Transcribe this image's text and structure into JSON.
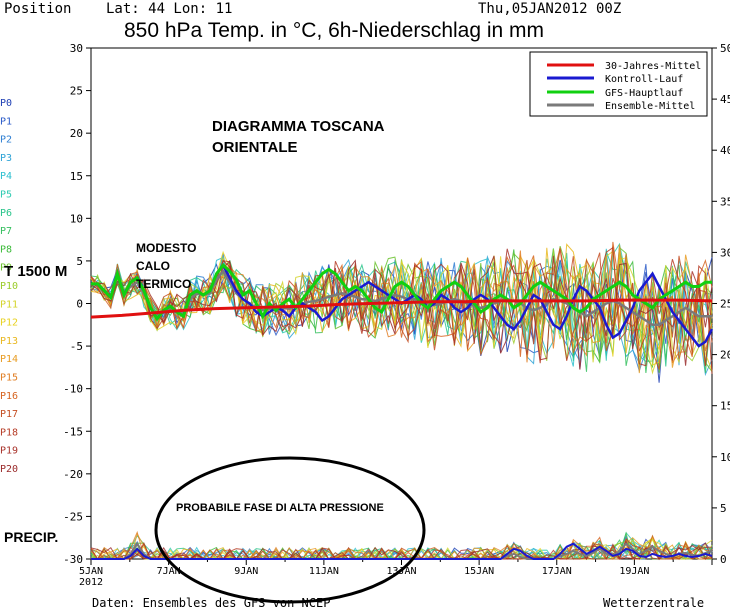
{
  "header": {
    "position_label": "Position",
    "lat_lon": "Lat: 44  Lon: 11",
    "run_date": "Thu,05JAN2012  00Z",
    "title": "850 hPa Temp. in °C, 6h-Niederschlag in mm"
  },
  "footer": {
    "source": "Daten: Ensembles des GFS von NCEP",
    "brand": "Wetterzentrale"
  },
  "annotations": {
    "diagram_title_line1": "DIAGRAMMA TOSCANA",
    "diagram_title_line2": "ORIENTALE",
    "modest_line1": "MODESTO",
    "modest_line2": "CALO",
    "modest_line3": "TERMICO",
    "altitude_label": "T 1500 M",
    "precip_label": "PRECIP.",
    "high_pressure": "PROBABILE FASE DI ALTA PRESSIONE"
  },
  "members": [
    "P0",
    "P1",
    "P2",
    "P3",
    "P4",
    "P5",
    "P6",
    "P7",
    "P8",
    "P9",
    "P10",
    "P11",
    "P12",
    "P13",
    "P14",
    "P15",
    "P16",
    "P17",
    "P18",
    "P19",
    "P20"
  ],
  "member_colors": [
    "#1e3fb4",
    "#2a5ac8",
    "#2f7fd2",
    "#2ea3d6",
    "#2bbfcf",
    "#2ccab0",
    "#28c48a",
    "#34bf5e",
    "#3cbb3a",
    "#6ac22d",
    "#9bcc2a",
    "#d3d42a",
    "#e8d222",
    "#e9b820",
    "#e89c22",
    "#e07d22",
    "#d6631f",
    "#c44d22",
    "#b63c26",
    "#a8322a",
    "#9a2a2a"
  ],
  "colors": {
    "clim": "#e01010",
    "control": "#1a1ad0",
    "main": "#10d010",
    "mean": "#7a7a7a"
  },
  "chart_data": {
    "type": "line",
    "x_ticks": [
      "5JAN\n2012",
      "7JAN",
      "9JAN",
      "11JAN",
      "13JAN",
      "15JAN",
      "17JAN",
      "19JAN"
    ],
    "y_left_ticks": [
      "30",
      "25",
      "20",
      "15",
      "10",
      "5",
      "0",
      "-5",
      "-10",
      "-15",
      "-20",
      "-25",
      "-30"
    ],
    "y_right_ticks": [
      "50",
      "45",
      "40",
      "35",
      "30",
      "25",
      "20",
      "15",
      "10",
      "5",
      "0"
    ],
    "ylim_temp": [
      -30,
      30
    ],
    "ylim_precip": [
      0,
      50
    ],
    "legend_position": "top-right",
    "legend": [
      "30-Jahres-Mittel",
      "Kontroll-Lauf",
      "GFS-Hauptlauf",
      "Ensemble-Mittel"
    ],
    "clim": [
      -1.6,
      -1.4,
      -1.1,
      -0.8,
      -0.6,
      -0.5,
      -0.4,
      -0.3,
      -0.1,
      0,
      0.1,
      0.2,
      0.2,
      0.3,
      0.3,
      0.3,
      0.3,
      0.4,
      0.4,
      0.4,
      0.3
    ],
    "main": [
      2.3,
      2.3,
      1.5,
      0.7,
      3.5,
      1.0,
      2.5,
      3.0,
      1.5,
      -0.5,
      -1.8,
      -0.8,
      -0.3,
      -1.0,
      -1.5,
      1.0,
      1.5,
      1.0,
      1.5,
      3.5,
      4.5,
      3.8,
      2.8,
      1.0,
      1.5,
      0.0,
      -1.5,
      0.0,
      -0.8,
      0.0,
      0.5,
      -0.5,
      0.5,
      1.5,
      2.5,
      3.5,
      4.0,
      3.5,
      2.5,
      1.5,
      2.0,
      1.5,
      0.5,
      -0.5,
      -1.0,
      0.5,
      2.0,
      2.5,
      2.0,
      1.0,
      0.0,
      -0.5,
      0.5,
      1.5,
      2.0,
      2.5,
      2.0,
      1.0,
      0.0,
      -1.0,
      -0.5,
      0.5,
      1.0,
      0.5,
      -0.5,
      0.0,
      1.0,
      2.0,
      2.5,
      2.0,
      1.5,
      1.0,
      0.5,
      -0.5,
      -1.0,
      -0.5,
      0.5,
      1.0,
      1.5,
      2.0,
      2.5,
      2.0,
      1.0,
      0.5,
      0.0,
      -0.5,
      0.5,
      1.0,
      1.5,
      2.0,
      2.5,
      2.0,
      2.0,
      2.5,
      2.5
    ],
    "control": [
      2.3,
      2.3,
      1.5,
      0.7,
      3.5,
      1.0,
      2.5,
      3.0,
      1.5,
      -0.5,
      -1.8,
      -0.8,
      -0.3,
      -1.0,
      -1.5,
      1.0,
      1.5,
      1.0,
      1.5,
      3.5,
      4.5,
      3.0,
      1.5,
      0.5,
      0.0,
      -1.0,
      -1.5,
      -1.0,
      -0.5,
      -0.8,
      -1.5,
      -0.5,
      0.0,
      -0.5,
      -1.0,
      -2.0,
      -1.5,
      -0.5,
      0.5,
      1.0,
      1.5,
      2.0,
      2.5,
      2.0,
      1.5,
      1.0,
      0.5,
      0.0,
      0.5,
      1.0,
      0.5,
      -0.5,
      0.0,
      1.0,
      0.5,
      -0.5,
      -1.0,
      -0.5,
      0.5,
      1.0,
      0.5,
      -0.5,
      -1.5,
      -2.5,
      -3.0,
      -2.0,
      -0.5,
      1.0,
      0.5,
      -1.0,
      -2.5,
      -3.0,
      -1.5,
      0.5,
      2.0,
      1.5,
      0.5,
      -0.5,
      -2.5,
      -4.0,
      -3.5,
      -2.0,
      -0.5,
      1.5,
      2.5,
      3.5,
      2.0,
      0.5,
      -1.0,
      -2.0,
      -3.0,
      -4.0,
      -5.0,
      -4.5,
      -3.0
    ],
    "mean": [
      2.3,
      2.3,
      1.5,
      0.7,
      3.5,
      1.2,
      2.0,
      2.5,
      1.2,
      -0.5,
      -1.5,
      -1.0,
      -0.5,
      -1.0,
      -1.2,
      0.5,
      1.2,
      1.0,
      1.2,
      2.8,
      3.8,
      2.5,
      1.2,
      0.5,
      0.0,
      -0.5,
      -0.8,
      -0.6,
      -0.4,
      -0.5,
      -0.6,
      -0.3,
      0.0,
      0.2,
      0.3,
      0.5,
      0.8,
      1.0,
      1.2,
      1.0,
      0.8,
      0.5,
      0.5,
      0.3,
      0.5,
      0.8,
      1.0,
      0.8,
      0.5,
      0.5,
      0.3,
      0.0,
      -0.2,
      0.0,
      0.3,
      0.5,
      0.3,
      0.0,
      -0.3,
      -0.5,
      -0.3,
      0.0,
      0.3,
      0.5,
      0.3,
      0.0,
      -0.5,
      -0.8,
      -0.5,
      0.0,
      0.5,
      0.3,
      0.0,
      -0.5,
      -1.0,
      -1.5,
      -1.0,
      -0.5,
      0.0,
      0.3,
      0.0,
      -0.5,
      -1.0,
      -1.5,
      -2.0,
      -2.5,
      -2.5,
      -2.0,
      -1.5,
      -1.0,
      -0.5,
      -1.0,
      -1.5,
      -1.5,
      -1.5
    ],
    "precip_mean": [
      0,
      0,
      0,
      0,
      0,
      0,
      0.5,
      1.5,
      0.5,
      0,
      0,
      0,
      0,
      0,
      0,
      0,
      0,
      0,
      0,
      0,
      0,
      0,
      0,
      0,
      0,
      0,
      0,
      0,
      0,
      0,
      0,
      0,
      0,
      0,
      0,
      0,
      0,
      0,
      0,
      0,
      0,
      0,
      0,
      0,
      0,
      0,
      0,
      0,
      0,
      0,
      0,
      0,
      0,
      0,
      0,
      0,
      0,
      0,
      0,
      0,
      0,
      0,
      0,
      0.3,
      0.5,
      0.2,
      0,
      0,
      0,
      0,
      0,
      0.3,
      0.5,
      0.8,
      0.5,
      0.3,
      0.6,
      1.0,
      0.5,
      0.3,
      0.8,
      1.5,
      1.0,
      0.5,
      0.8,
      1.2,
      0.8,
      0.5,
      0.3,
      0.5,
      0.6,
      0.4,
      0.3,
      0.6,
      0.8
    ],
    "precip_control": [
      0,
      0,
      0,
      0,
      0,
      0,
      0.3,
      1.0,
      0.3,
      0,
      0,
      0,
      0,
      0,
      0,
      0,
      0,
      0,
      0,
      0,
      0,
      0,
      0,
      0,
      0,
      0,
      0,
      0,
      0,
      0,
      0,
      0,
      0,
      0,
      0,
      0,
      0,
      0,
      0,
      0,
      0,
      0,
      0,
      0,
      0,
      0,
      0,
      0,
      0,
      0,
      0,
      0,
      0,
      0,
      0,
      0,
      0,
      0,
      0,
      0,
      0,
      0,
      0,
      0.5,
      1.0,
      0.8,
      0.3,
      0,
      0,
      0,
      0,
      0.5,
      1.2,
      1.5,
      1.0,
      0.5,
      0.8,
      1.2,
      0.8,
      0.3,
      0.5,
      1.0,
      0.8,
      0.3,
      0.2,
      0.5,
      0.3,
      0.2,
      0.3,
      0.5,
      0.3,
      0.2,
      0.3,
      0.5,
      0.3
    ]
  }
}
